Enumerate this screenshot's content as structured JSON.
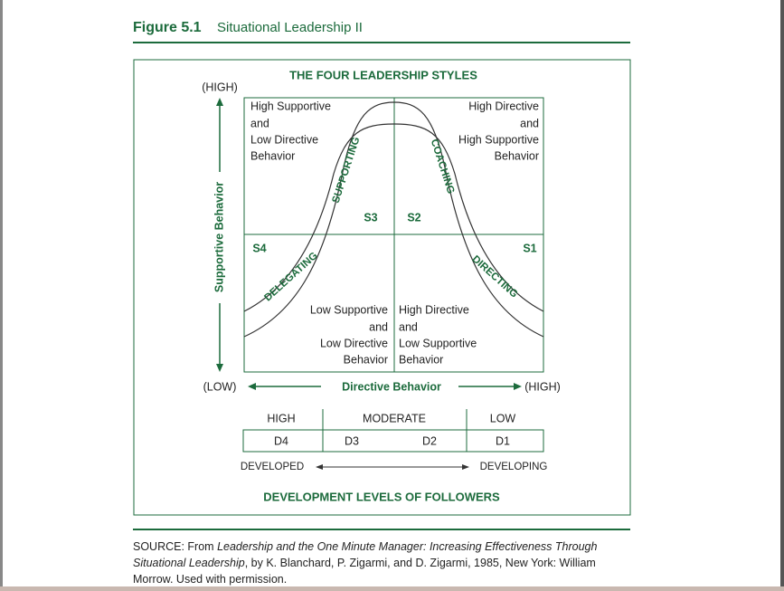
{
  "header": {
    "label": "Figure 5.1",
    "title": "Situational Leadership II"
  },
  "diagram": {
    "title": "THE FOUR LEADERSHIP STYLES",
    "y_axis": {
      "high": "(HIGH)",
      "low": "(LOW)",
      "label": "Supportive Behavior"
    },
    "x_axis": {
      "low": "(LOW)",
      "high": "(HIGH)",
      "label": "Directive Behavior"
    },
    "quadrants": [
      {
        "lines": [
          "High Supportive",
          "and",
          "Low Directive",
          "Behavior"
        ],
        "style": "S3"
      },
      {
        "lines": [
          "High Directive",
          "and",
          "High Supportive",
          "Behavior"
        ],
        "style": "S2"
      },
      {
        "lines": [
          "Low Supportive",
          "and",
          "Low Directive",
          "Behavior"
        ],
        "style": "S4"
      },
      {
        "lines": [
          "High Directive",
          "and",
          "Low Supportive",
          "Behavior"
        ],
        "style": "S1"
      }
    ],
    "curve_labels": [
      "SUPPORTING",
      "COACHING",
      "DELEGATING",
      "DIRECTING"
    ],
    "development": {
      "levels": [
        "HIGH",
        "MODERATE",
        "LOW"
      ],
      "stages": [
        "D4",
        "D3",
        "D2",
        "D1"
      ],
      "left": "DEVELOPED",
      "right": "DEVELOPING",
      "title": "DEVELOPMENT LEVELS OF FOLLOWERS"
    }
  },
  "source": {
    "prefix": "SOURCE: From ",
    "work": "Leadership and the One Minute Manager: Increasing Effectiveness Through Situational Leadership",
    "rest": ", by K. Blanchard, P. Zigarmi, and D. Zigarmi, 1985, New York: William Morrow. Used with permission."
  }
}
